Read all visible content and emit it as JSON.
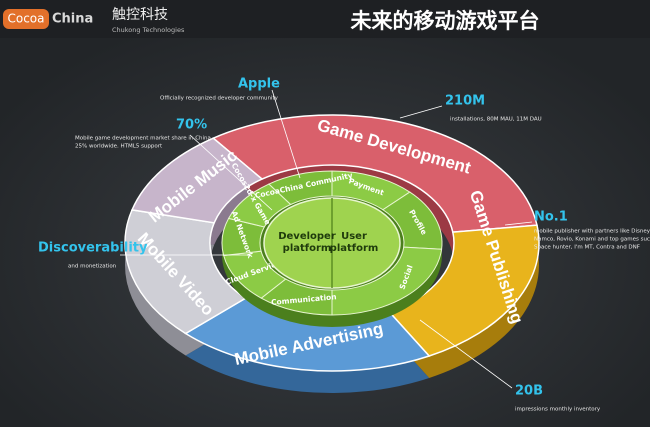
{
  "logo": {
    "brand_left": "Cocoa",
    "brand_right": "China",
    "company_cn": "触控科技",
    "company_en": "Chukong Technologies"
  },
  "title": "未来的移动游戏平台",
  "outer_ring": [
    "Game Development",
    "Game Publishing",
    "Mobile Advertising",
    "Mobile Video",
    "Mobile Music"
  ],
  "middle_ring": [
    "Payment",
    "Profile",
    "Social",
    "Communication",
    "Cloud Service",
    "Ad Network",
    "Cocos2d-x Game Engine",
    "CocoaChina Community"
  ],
  "core": {
    "left": [
      "Developer",
      "platform"
    ],
    "right": [
      "User",
      "platform"
    ]
  },
  "callouts": [
    {
      "headline": "Apple",
      "lines": [
        "Officially recognized developer community"
      ]
    },
    {
      "headline": "70%",
      "lines": [
        "Mobile game development market share in China,",
        "25% worldwide. HTML5 support"
      ]
    },
    {
      "headline": "Discoverability",
      "lines": [
        "and monetization"
      ]
    },
    {
      "headline": "210M",
      "lines": [
        "installations, 80M MAU, 11M DAU"
      ]
    },
    {
      "headline": "No.1",
      "lines": [
        "mobile publisher with partners like Disney,",
        "Namco, Rovio, Konami and top games such as",
        "Space hunter, I'm MT, Contra and DNF"
      ]
    },
    {
      "headline": "20B",
      "lines": [
        "impressions monthly inventory"
      ]
    }
  ]
}
